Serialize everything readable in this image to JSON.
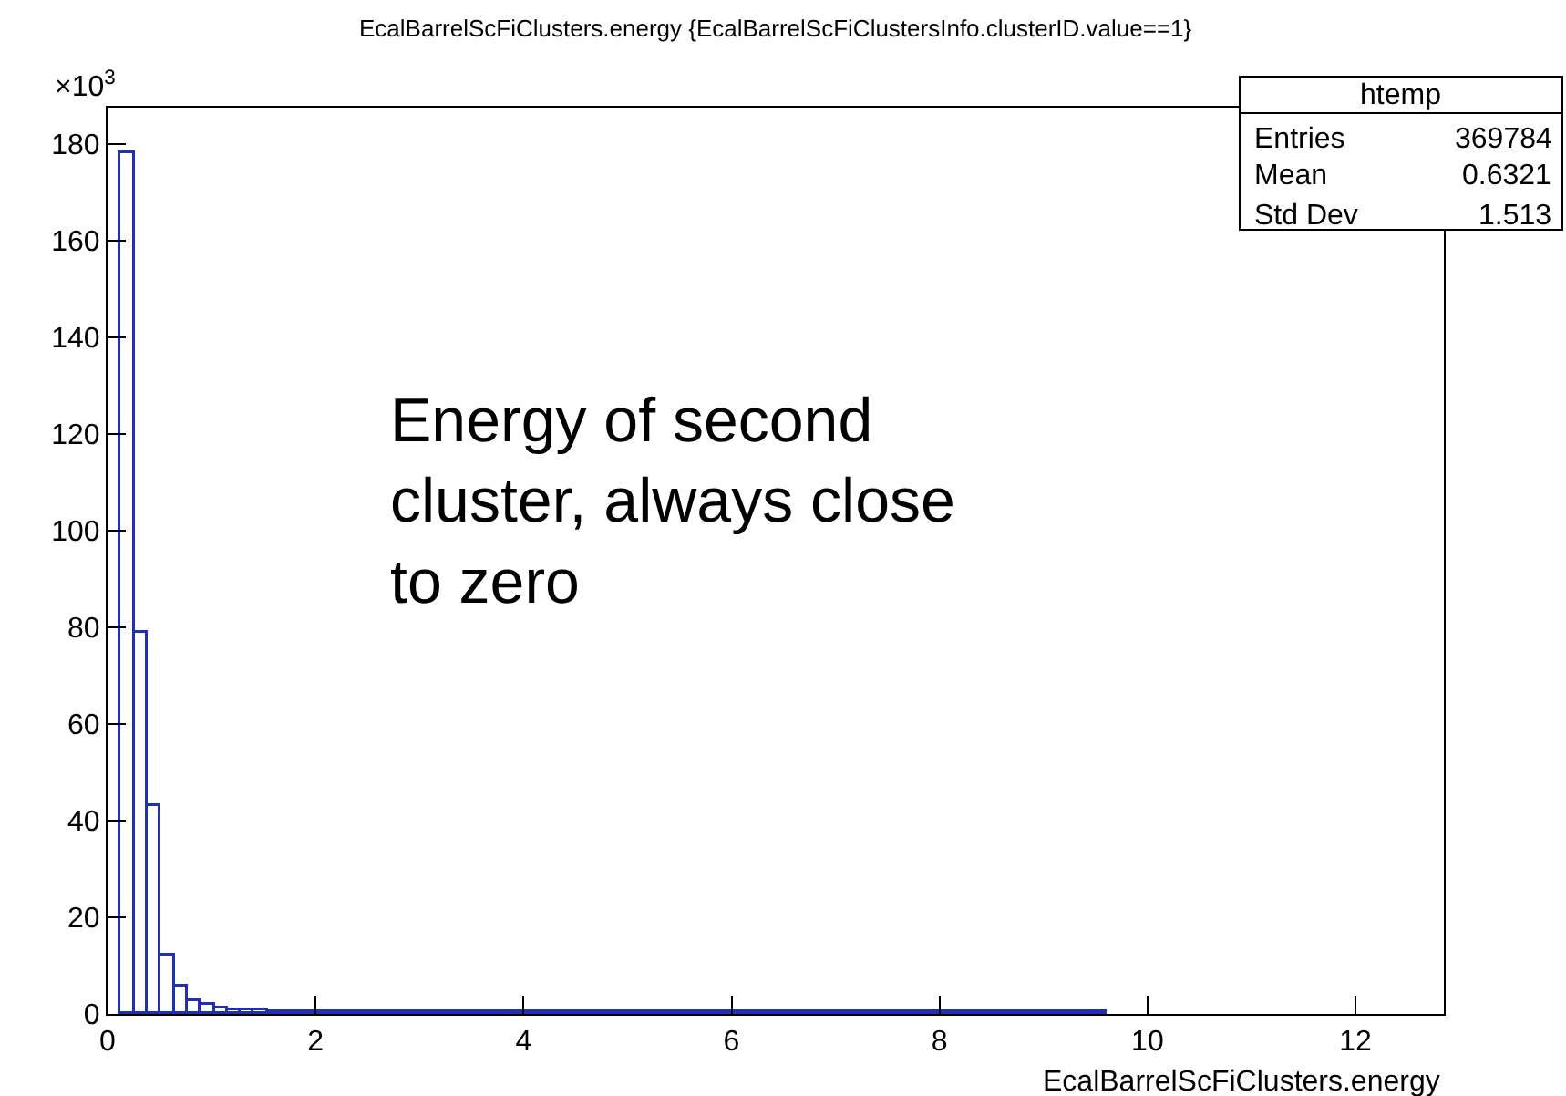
{
  "chart_data": {
    "type": "histogram",
    "title": "EcalBarrelScFiClusters.energy {EcalBarrelScFiClustersInfo.clusterID.value==1}",
    "xlabel": "EcalBarrelScFiClusters.energy",
    "bins": [
      0.13,
      0.258,
      0.386,
      0.514,
      0.642,
      0.77,
      0.898,
      1.026,
      1.154,
      1.282,
      1.41,
      1.538,
      1.666,
      1.794,
      1.922,
      2.05,
      2.178,
      2.306,
      2.434,
      2.562,
      2.69,
      2.818,
      2.946,
      3.074,
      3.202,
      3.33,
      3.458,
      3.586,
      3.714,
      3.842,
      3.97,
      4.098,
      4.226,
      4.354,
      4.482,
      4.61,
      4.738,
      4.866,
      4.994,
      5.122,
      5.25,
      5.378,
      5.506,
      5.634,
      5.762,
      5.89,
      6.018,
      6.146,
      6.274,
      6.402,
      6.53,
      6.658,
      6.786,
      6.914,
      7.042,
      7.17,
      7.298,
      7.426,
      7.554,
      7.682,
      7.81,
      7.938,
      8.066,
      8.194,
      8.322,
      8.45,
      8.578,
      8.706,
      8.834,
      8.962,
      9.09,
      9.218,
      9.346,
      9.474,
      9.602
    ],
    "values": [
      178,
      79,
      43,
      12,
      5.6,
      2.8,
      1.8,
      1.2,
      0.9,
      0.9,
      0.7,
      0.4,
      0.4,
      0.3,
      0.3,
      0.3,
      0.3,
      0.3,
      0.3,
      0.3,
      0.3,
      0.3,
      0.3,
      0.3,
      0.3,
      0.3,
      0.3,
      0.3,
      0.3,
      0.3,
      0.3,
      0.3,
      0.3,
      0.3,
      0.3,
      0.3,
      0.3,
      0.3,
      0.3,
      0.3,
      0.3,
      0.3,
      0.3,
      0.3,
      0.3,
      0.3,
      0.3,
      0.3,
      0.3,
      0.3,
      0.3,
      0.3,
      0.3,
      0.3,
      0.3,
      0.3,
      0.3,
      0.3,
      0.3,
      0.3,
      0.3,
      0.3,
      0.3,
      0.3,
      0.3,
      0.3,
      0.3,
      0.3,
      0.3,
      0.3,
      0.3,
      0.3,
      0.3,
      0.3
    ],
    "color": "#2030b0",
    "xlim": [
      0,
      12.85
    ],
    "xticks": [
      0,
      2,
      4,
      6,
      8,
      10,
      12
    ],
    "ylim": [
      0,
      187.5
    ],
    "yticks": [
      0,
      20,
      40,
      60,
      80,
      100,
      120,
      140,
      160,
      180
    ],
    "grid": false,
    "annotations": [
      "×10$^{3}$",
      "Energy of second cluster, always close to zero",
      "htemp",
      "Entries",
      "369784",
      "Mean",
      "0.6321",
      "Std Dev",
      "1.513"
    ]
  }
}
